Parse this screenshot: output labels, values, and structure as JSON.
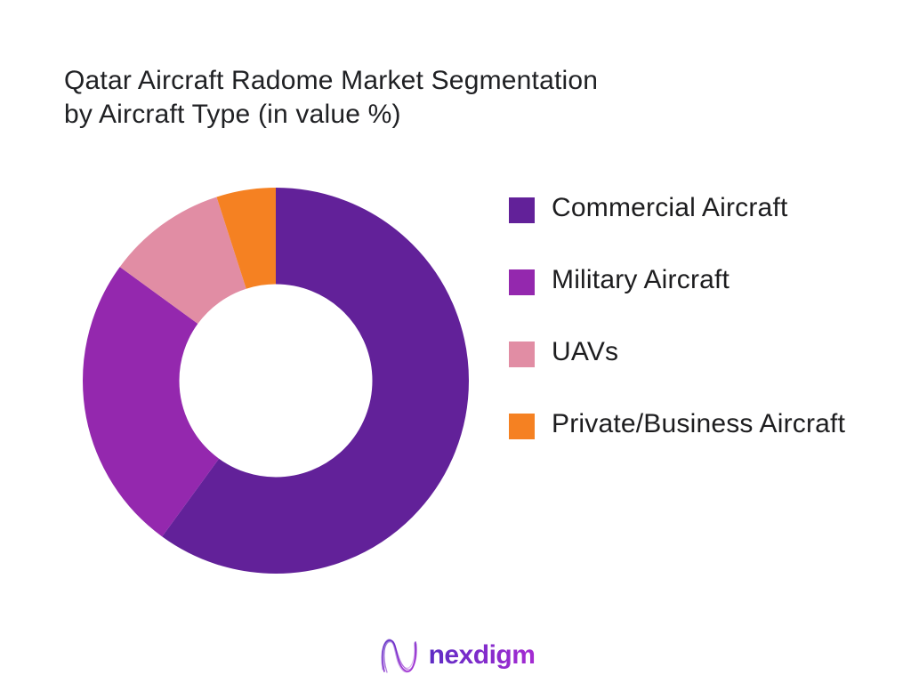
{
  "page": {
    "background_color": "#ffffff"
  },
  "title": {
    "line1": "Qatar Aircraft Radome Market Segmentation",
    "line2": "by Aircraft Type (in value %)"
  },
  "chart_data": {
    "type": "pie",
    "subtype": "donut",
    "title": "Qatar Aircraft Radome Market Segmentation by Aircraft Type (in value %)",
    "value_unit": "value %",
    "categories": [
      "Commercial Aircraft",
      "Military Aircraft",
      "UAVs",
      "Private/Business Aircraft"
    ],
    "values": [
      60,
      25,
      10,
      5
    ],
    "colors": [
      "#622199",
      "#9428AE",
      "#E18DA4",
      "#F58122"
    ],
    "start_angle_deg": 0,
    "direction": "clockwise",
    "inner_radius_ratio": 0.5,
    "legend_position": "right",
    "data_labels_shown": false
  },
  "footer": {
    "brand_name": "nexdigm",
    "logo_icon": "nexdigm-wave-n-icon",
    "brand_color_start": "#5d2cc4",
    "brand_color_end": "#a52bd2"
  }
}
